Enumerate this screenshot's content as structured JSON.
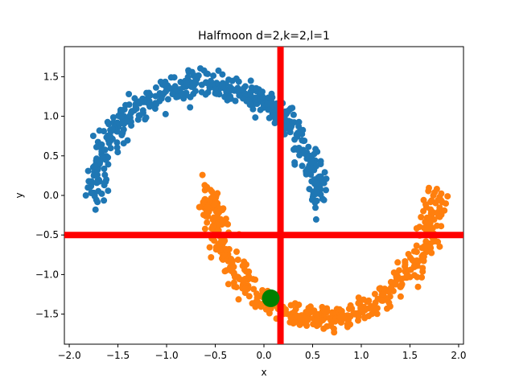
{
  "chart_data": {
    "type": "scatter",
    "title": "Halfmoon d=2,k=2,l=1",
    "xlabel": "x",
    "ylabel": "y",
    "xlim": [
      -2.05,
      2.05
    ],
    "ylim": [
      -1.88,
      1.88
    ],
    "xticks": [
      -2.0,
      -1.5,
      -1.0,
      -0.5,
      0.0,
      0.5,
      1.0,
      1.5,
      2.0
    ],
    "xtick_labels": [
      "−2.0",
      "−1.5",
      "−1.0",
      "−0.5",
      "0.0",
      "0.5",
      "1.0",
      "1.5",
      "2.0"
    ],
    "yticks": [
      -1.5,
      -1.0,
      -0.5,
      0.0,
      0.5,
      1.0,
      1.5
    ],
    "ytick_labels": [
      "−1.5",
      "−1.0",
      "−0.5",
      "0.0",
      "0.5",
      "1.0",
      "1.5"
    ],
    "grid": false,
    "series": [
      {
        "color": "#1f77b4",
        "shape": "upper-moon",
        "center": [
          -0.6,
          0.0
        ],
        "radius_x": 1.15,
        "radius_y": 1.45,
        "n_points": 500
      },
      {
        "color": "#ff7f0e",
        "shape": "lower-moon",
        "center": [
          0.6,
          0.0
        ],
        "radius_x": 1.15,
        "radius_y": 1.6,
        "n_points": 500
      }
    ],
    "marker": {
      "color": "#008000",
      "x": 0.07,
      "y": -1.3
    },
    "vline": {
      "x": 0.17,
      "color": "#ff0000"
    },
    "hline": {
      "y": -0.5,
      "color": "#ff0000"
    }
  }
}
